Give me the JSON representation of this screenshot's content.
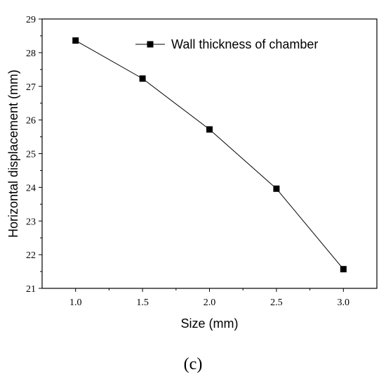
{
  "chart_data": {
    "type": "line",
    "xlabel": "Size (mm)",
    "ylabel": "Horizontal displacement (mm)",
    "xlim": [
      0.75,
      3.25
    ],
    "ylim": [
      21,
      29
    ],
    "x_ticks": [
      "1.0",
      "1.5",
      "2.0",
      "2.5",
      "3.0"
    ],
    "y_ticks": [
      "21",
      "22",
      "23",
      "24",
      "25",
      "26",
      "27",
      "28",
      "29"
    ],
    "series": [
      {
        "name": "Wall thickness of chamber",
        "marker": "square",
        "color": "#000000",
        "x": [
          1.0,
          1.5,
          2.0,
          2.5,
          3.0
        ],
        "y": [
          28.36,
          27.23,
          25.72,
          23.96,
          21.57
        ]
      }
    ],
    "legend_position": "top-right",
    "grid": false
  },
  "caption": "(c)"
}
